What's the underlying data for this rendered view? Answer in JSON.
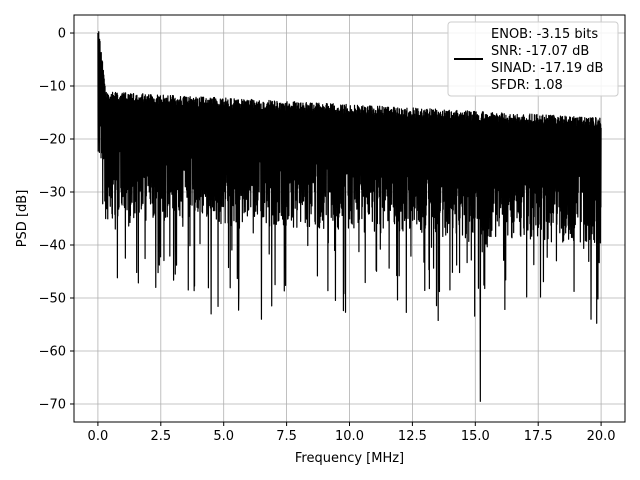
{
  "chart_data": {
    "type": "line",
    "title": "",
    "xlabel": "Frequency [MHz]",
    "ylabel": "PSD [dB]",
    "xlim": [
      -0.95,
      20.95
    ],
    "ylim": [
      -73.4,
      3.4
    ],
    "xticks": [
      0.0,
      2.5,
      5.0,
      7.5,
      10.0,
      12.5,
      15.0,
      17.5,
      20.0
    ],
    "xtick_labels": [
      "0.0",
      "2.5",
      "5.0",
      "7.5",
      "10.0",
      "12.5",
      "15.0",
      "17.5",
      "20.0"
    ],
    "yticks": [
      0,
      -10,
      -20,
      -30,
      -40,
      -50,
      -60,
      -70
    ],
    "ytick_labels": [
      "0",
      "−10",
      "−20",
      "−30",
      "−40",
      "−50",
      "−60",
      "−70"
    ],
    "grid": true,
    "legend": {
      "placement": "top-right",
      "entries": [
        "ENOB: -3.15 bits",
        "SNR: -17.07 dB",
        "SINAD: -17.19 dB",
        "SFDR: 1.08"
      ]
    },
    "series": [
      {
        "color": "#000000",
        "description_ranges": "noise floor between about -12 dB and -37 dB across 0-20 MHz; peak 0 dB near 0 MHz",
        "x": [
          0.0,
          0.02,
          0.05,
          0.1,
          0.15,
          0.2,
          0.3,
          0.4,
          0.5,
          0.6,
          0.8,
          1.0,
          1.2,
          1.5,
          1.8,
          2.2,
          2.3,
          2.6,
          3.0,
          3.4,
          3.8,
          4.2,
          4.5,
          4.7,
          5.0,
          5.4,
          5.6,
          6.0,
          6.5,
          7.0,
          7.5,
          8.0,
          8.5,
          9.0,
          9.5,
          10.0,
          10.5,
          11.0,
          11.5,
          12.0,
          12.5,
          13.0,
          13.5,
          14.0,
          14.5,
          15.0,
          15.2,
          15.5,
          16.0,
          16.5,
          17.0,
          17.5,
          18.0,
          18.5,
          19.0,
          19.5,
          19.6,
          20.0
        ],
        "y": [
          0.0,
          -2.0,
          -5.0,
          -8.0,
          -10.0,
          -12.0,
          -13.0,
          -14.0,
          -14.5,
          -15.0,
          -15.5,
          -16.0,
          -16.0,
          -16.5,
          -17.0,
          -17.0,
          -48.0,
          -17.0,
          -17.5,
          -18.0,
          -18.0,
          -18.5,
          -53.0,
          -18.0,
          -18.5,
          -19.0,
          -49.0,
          -18.5,
          -54.0,
          -19.0,
          -19.5,
          -19.5,
          -20.0,
          -20.0,
          -20.5,
          -20.0,
          -20.5,
          -21.0,
          -21.0,
          -21.0,
          -21.0,
          -21.5,
          -21.5,
          -21.5,
          -22.0,
          -22.0,
          -69.5,
          -22.0,
          -22.0,
          -22.5,
          -22.5,
          -22.5,
          -23.0,
          -23.0,
          -23.0,
          -23.5,
          -54.0,
          -23.5
        ]
      }
    ]
  }
}
